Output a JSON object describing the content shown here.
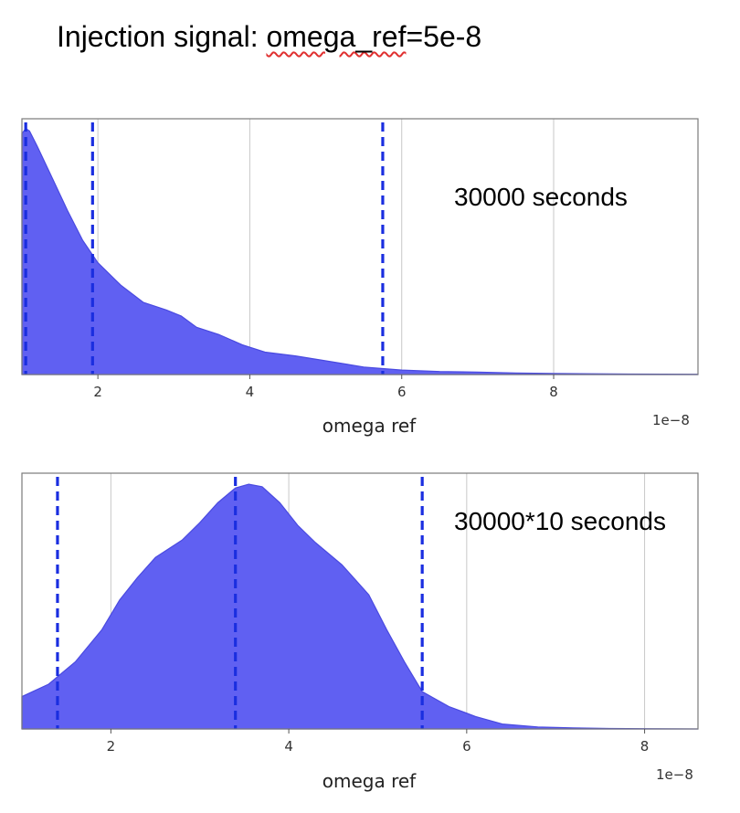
{
  "title": {
    "prefix": "Injection signal: ",
    "underlined": "omega_ref",
    "suffix": "=5e-8"
  },
  "colors": {
    "fill": "#6060f2",
    "stroke": "#4a4ae0",
    "dashed": "#1a2ee0",
    "grid": "#c8c8c8",
    "frame": "#7a7a7a"
  },
  "chart_data": [
    {
      "type": "area",
      "annotation": "30000 seconds",
      "xlabel": "omega ref",
      "ylabel": "",
      "sci_label": "1e−8",
      "xlim": [
        1.0,
        9.9
      ],
      "ylim": [
        0,
        1.0
      ],
      "xticks": [
        2,
        4,
        6,
        8
      ],
      "grid": true,
      "dashed_lines": [
        1.05,
        1.93,
        5.75
      ],
      "x": [
        1.0,
        1.05,
        1.1,
        1.2,
        1.4,
        1.6,
        1.8,
        2.0,
        2.3,
        2.6,
        2.9,
        3.1,
        3.3,
        3.6,
        3.9,
        4.2,
        4.6,
        5.0,
        5.5,
        6.0,
        6.5,
        7.0,
        7.5,
        8.0,
        9.0,
        9.9
      ],
      "y": [
        0.97,
        0.99,
        0.98,
        0.92,
        0.79,
        0.66,
        0.54,
        0.45,
        0.36,
        0.29,
        0.26,
        0.235,
        0.19,
        0.16,
        0.12,
        0.09,
        0.075,
        0.055,
        0.03,
        0.018,
        0.012,
        0.01,
        0.006,
        0.004,
        0.002,
        0.001
      ]
    },
    {
      "type": "area",
      "annotation": "30000*10 seconds",
      "xlabel": "omega ref",
      "ylabel": "",
      "sci_label": "1e−8",
      "xlim": [
        1.0,
        8.6
      ],
      "ylim": [
        0,
        1.0
      ],
      "xticks": [
        2,
        4,
        6,
        8
      ],
      "grid": true,
      "dashed_lines": [
        1.4,
        3.4,
        5.5
      ],
      "x": [
        1.0,
        1.3,
        1.6,
        1.9,
        2.1,
        2.3,
        2.5,
        2.8,
        3.0,
        3.2,
        3.4,
        3.55,
        3.7,
        3.9,
        4.1,
        4.3,
        4.6,
        4.9,
        5.1,
        5.3,
        5.5,
        5.8,
        6.1,
        6.4,
        6.8,
        7.2,
        7.6,
        8.0,
        8.6
      ],
      "y": [
        0.13,
        0.18,
        0.27,
        0.4,
        0.52,
        0.61,
        0.69,
        0.76,
        0.83,
        0.91,
        0.97,
        0.985,
        0.975,
        0.91,
        0.82,
        0.75,
        0.66,
        0.54,
        0.4,
        0.27,
        0.15,
        0.09,
        0.05,
        0.02,
        0.008,
        0.004,
        0.002,
        0.001,
        0.0
      ]
    }
  ]
}
